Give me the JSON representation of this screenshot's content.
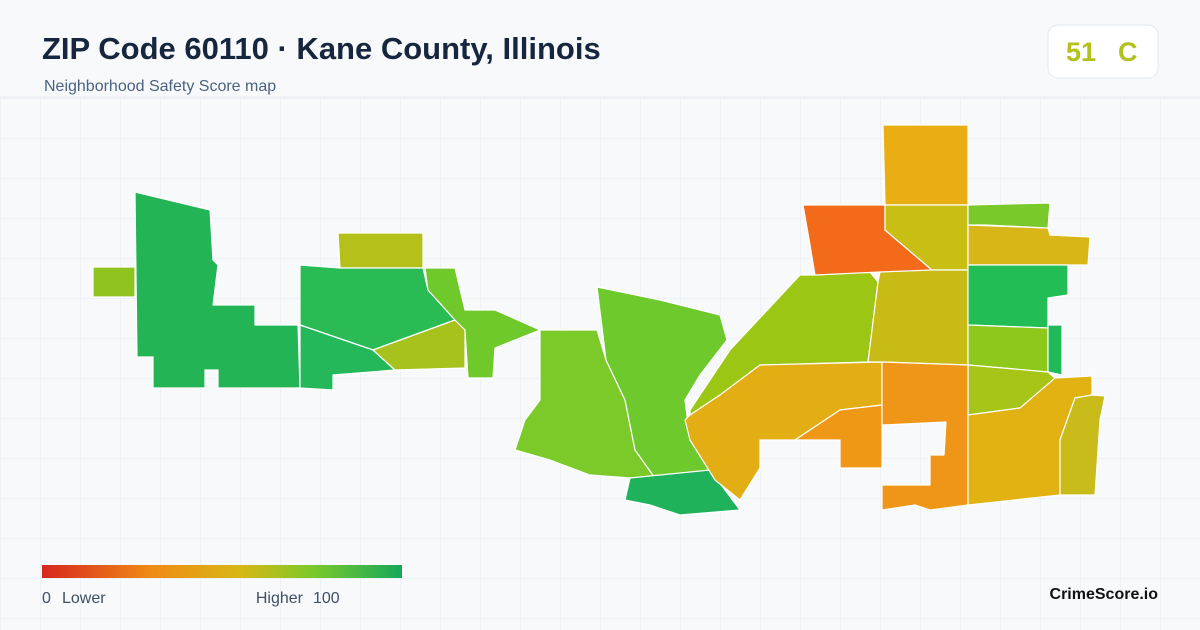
{
  "header": {
    "title": "ZIP Code 60110 · Kane County, Illinois",
    "subtitle": "Neighborhood Safety Score map"
  },
  "score": {
    "value": 51,
    "grade": "C"
  },
  "legend": {
    "min": 0,
    "min_label": "Lower",
    "max_label": "Higher",
    "max": 100
  },
  "footer": {
    "brand": "CrimeScore.io"
  }
}
